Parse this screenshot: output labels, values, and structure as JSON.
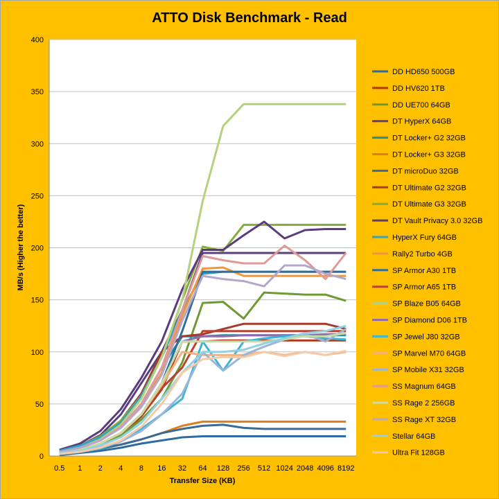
{
  "chart_data": {
    "type": "line",
    "title": "ATTO Disk Benchmark - Read",
    "xlabel": "Transfer Size (KB)",
    "ylabel": "MB/s (Higher the better)",
    "ylim": [
      0,
      400
    ],
    "yticks": [
      0,
      50,
      100,
      150,
      200,
      250,
      300,
      350,
      400
    ],
    "grid": "horizontal",
    "legend_position": "right",
    "categories": [
      "0.5",
      "1",
      "2",
      "4",
      "8",
      "16",
      "32",
      "64",
      "128",
      "256",
      "512",
      "1024",
      "2048",
      "4096",
      "8192"
    ],
    "series": [
      {
        "name": "DD HD650 500GB",
        "color": "#2e6ba0",
        "values": [
          1,
          3,
          5,
          8,
          12,
          15,
          18,
          19,
          19,
          19,
          19,
          19,
          19,
          19,
          19
        ]
      },
      {
        "name": "DD HV620 1TB",
        "color": "#b5361e",
        "values": [
          2,
          4,
          10,
          20,
          38,
          64,
          110,
          110,
          111,
          111,
          111,
          111,
          111,
          111,
          111
        ]
      },
      {
        "name": "DD UE700 64GB",
        "color": "#6e9a33",
        "values": [
          3,
          6,
          11,
          20,
          35,
          55,
          90,
          147,
          148,
          132,
          157,
          156,
          155,
          155,
          149
        ]
      },
      {
        "name": "DT HyperX 64GB",
        "color": "#5b3e80",
        "values": [
          5,
          10,
          20,
          40,
          70,
          100,
          140,
          195,
          195,
          195,
          195,
          195,
          195,
          195,
          195
        ]
      },
      {
        "name": "DT Locker+ G2 32GB",
        "color": "#1f8f99",
        "values": [
          4,
          8,
          15,
          28,
          50,
          85,
          115,
          115,
          116,
          116,
          116,
          116,
          116,
          116,
          116
        ]
      },
      {
        "name": "DT Locker+ G3 32GB",
        "color": "#e07d1b",
        "values": [
          2,
          4,
          7,
          11,
          16,
          22,
          29,
          33,
          33,
          33,
          33,
          33,
          33,
          33,
          33
        ]
      },
      {
        "name": "DT microDuo 32GB",
        "color": "#3a6a96",
        "values": [
          2,
          4,
          7,
          11,
          16,
          22,
          26,
          29,
          30,
          27,
          26,
          26,
          26,
          26,
          26
        ]
      },
      {
        "name": "DT Ultimate G2 32GB",
        "color": "#a63a2a",
        "values": [
          4,
          9,
          18,
          34,
          60,
          100,
          115,
          117,
          122,
          127,
          127,
          127,
          127,
          127,
          122
        ]
      },
      {
        "name": "DT Ultimate G3 32GB",
        "color": "#86ab3e",
        "values": [
          5,
          10,
          19,
          34,
          58,
          95,
          150,
          201,
          197,
          222,
          222,
          222,
          222,
          222,
          222
        ]
      },
      {
        "name": "DT Vault Privacy 3.0 32GB",
        "color": "#5a3b7e",
        "values": [
          6,
          12,
          24,
          45,
          75,
          110,
          160,
          198,
          198,
          212,
          225,
          209,
          217,
          218,
          218
        ]
      },
      {
        "name": "HyperX Fury 64GB",
        "color": "#33a3c1",
        "values": [
          5,
          10,
          18,
          32,
          58,
          95,
          140,
          175,
          177,
          177,
          177,
          177,
          177,
          177,
          177
        ]
      },
      {
        "name": "Rally2 Turbo 4GB",
        "color": "#f0973a",
        "values": [
          4,
          8,
          15,
          27,
          48,
          80,
          135,
          180,
          181,
          173,
          173,
          173,
          173,
          173,
          173
        ]
      },
      {
        "name": "SP Armor A30 1TB",
        "color": "#2f6e9c",
        "values": [
          3,
          6,
          12,
          22,
          40,
          70,
          120,
          177,
          177,
          177,
          177,
          177,
          177,
          177,
          177
        ]
      },
      {
        "name": "SP Armor A65 1TB",
        "color": "#b8412f",
        "values": [
          3,
          6,
          12,
          22,
          40,
          65,
          85,
          120,
          120,
          120,
          120,
          120,
          120,
          120,
          120
        ]
      },
      {
        "name": "SP Blaze B05 64GB",
        "color": "#b5d17c",
        "values": [
          4,
          8,
          16,
          30,
          55,
          95,
          150,
          245,
          317,
          338,
          338,
          338,
          338,
          338,
          338
        ]
      },
      {
        "name": "SP Diamond D06 1TB",
        "color": "#8d6cae",
        "values": [
          3,
          6,
          12,
          22,
          40,
          70,
          110,
          115,
          115,
          116,
          116,
          116,
          116,
          117,
          117
        ]
      },
      {
        "name": "SP Jewel J80 32GB",
        "color": "#3fb4d2",
        "values": [
          2,
          4,
          7,
          14,
          26,
          40,
          55,
          110,
          82,
          110,
          113,
          115,
          115,
          113,
          112
        ]
      },
      {
        "name": "SP Marvel M70 64GB",
        "color": "#f6b07a",
        "values": [
          3,
          6,
          12,
          22,
          40,
          68,
          100,
          97,
          97,
          97,
          100,
          97,
          100,
          97,
          100
        ]
      },
      {
        "name": "SP Mobile X31 32GB",
        "color": "#97b6d8",
        "values": [
          2,
          4,
          8,
          14,
          24,
          40,
          60,
          100,
          82,
          97,
          105,
          112,
          117,
          110,
          122
        ]
      },
      {
        "name": "SS Magnum 64GB",
        "color": "#e09a96",
        "values": [
          4,
          8,
          15,
          28,
          50,
          85,
          140,
          192,
          188,
          185,
          185,
          202,
          188,
          170,
          195
        ]
      },
      {
        "name": "SS Rage 2 256GB",
        "color": "#c8dca5",
        "values": [
          3,
          6,
          12,
          22,
          40,
          70,
          110,
          110,
          110,
          110,
          110,
          112,
          115,
          115,
          118
        ]
      },
      {
        "name": "SS Rage XT 32GB",
        "color": "#b4a6cc",
        "values": [
          4,
          8,
          15,
          27,
          47,
          78,
          130,
          173,
          170,
          168,
          163,
          183,
          183,
          175,
          170
        ]
      },
      {
        "name": "Stellar 64GB",
        "color": "#93d0e0",
        "values": [
          3,
          5,
          10,
          18,
          32,
          55,
          80,
          100,
          100,
          102,
          108,
          113,
          118,
          120,
          125
        ]
      },
      {
        "name": "Ultra Fit 128GB",
        "color": "#f8c9a6",
        "values": [
          2,
          4,
          8,
          15,
          28,
          50,
          80,
          93,
          95,
          95,
          100,
          96,
          100,
          97,
          101
        ]
      }
    ]
  }
}
